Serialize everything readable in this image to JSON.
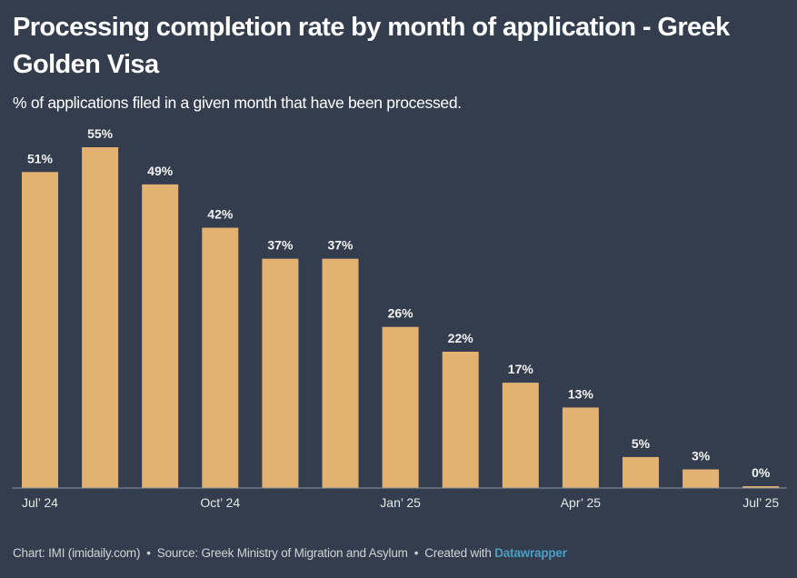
{
  "header": {
    "title": "Processing completion rate by month of application - Greek Golden Visa",
    "subtitle": "% of applications filed in a given month that have been processed."
  },
  "footer": {
    "chart_credit": "Chart: IMI (imidaily.com)",
    "source": "Source: Greek Ministry of Migration and Asylum",
    "created_with": "Created with",
    "tool_link": "Datawrapper",
    "separator": "•"
  },
  "colors": {
    "background": "#333d4d",
    "bar": "#e3b273",
    "axis": "#8c95a3",
    "link": "#4a9ec4"
  },
  "chart_data": {
    "type": "bar",
    "title": "Processing completion rate by month of application - Greek Golden Visa",
    "subtitle": "% of applications filed in a given month that have been processed.",
    "xlabel": "",
    "ylabel": "",
    "ylim": [
      0,
      55
    ],
    "grid": false,
    "categories": [
      "Jul 2024",
      "Aug 2024",
      "Sep 2024",
      "Oct 2024",
      "Nov 2024",
      "Dec 2024",
      "Jan 2025",
      "Feb 2025",
      "Mar 2025",
      "Apr 2025",
      "May 2025",
      "Jun 2025",
      "Jul 2025"
    ],
    "values": [
      51,
      55,
      49,
      42,
      37,
      37,
      26,
      22,
      17,
      13,
      5,
      3,
      0
    ],
    "data_labels": [
      "51%",
      "55%",
      "49%",
      "42%",
      "37%",
      "37%",
      "26%",
      "22%",
      "17%",
      "13%",
      "5%",
      "3%",
      "0%"
    ],
    "x_tick_labels": [
      {
        "index": 0,
        "label": "Jul’ 24"
      },
      {
        "index": 3,
        "label": "Oct’ 24"
      },
      {
        "index": 6,
        "label": "Jan’ 25"
      },
      {
        "index": 9,
        "label": "Apr’ 25"
      },
      {
        "index": 12,
        "label": "Jul’ 25"
      }
    ],
    "legend": "none"
  }
}
